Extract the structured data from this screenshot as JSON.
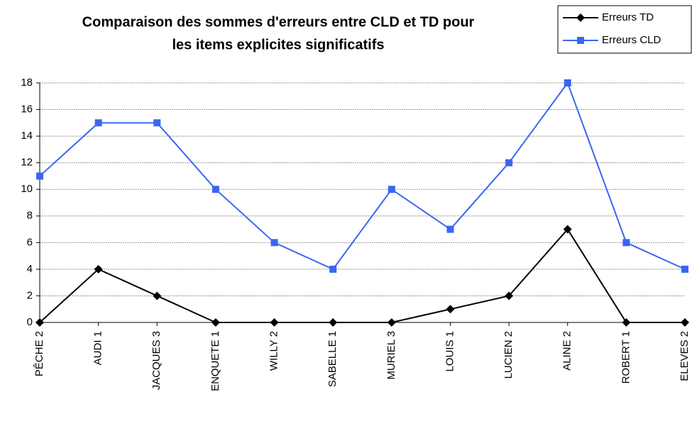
{
  "chart_data": {
    "type": "line",
    "title": [
      "Comparaison des sommes d'erreurs entre CLD et TD pour",
      "les items explicites significatifs"
    ],
    "categories": [
      "PÊCHE 2",
      "AUDI 1",
      "JACQUES 3",
      "ENQUETE 1",
      "WILLY 2",
      "SABELLE 1",
      "MURIEL 3",
      "LOUIS 1",
      "LUCIEN 2",
      "ALINE 2",
      "ROBERT 1",
      "ELEVES 2"
    ],
    "series": [
      {
        "name": "Erreurs TD",
        "color": "#000000",
        "marker": "diamond",
        "values": [
          0,
          4,
          2,
          0,
          0,
          0,
          0,
          1,
          2,
          7,
          0,
          0
        ]
      },
      {
        "name": "Erreurs CLD",
        "color": "#3a66f0",
        "marker": "square",
        "values": [
          11,
          15,
          15,
          10,
          6,
          4,
          10,
          7,
          12,
          18,
          6,
          4
        ]
      }
    ],
    "ylim": [
      0,
      18
    ],
    "yticks": [
      0,
      2,
      4,
      6,
      8,
      10,
      12,
      14,
      16,
      18
    ],
    "grid": true,
    "legend": "top-right"
  }
}
